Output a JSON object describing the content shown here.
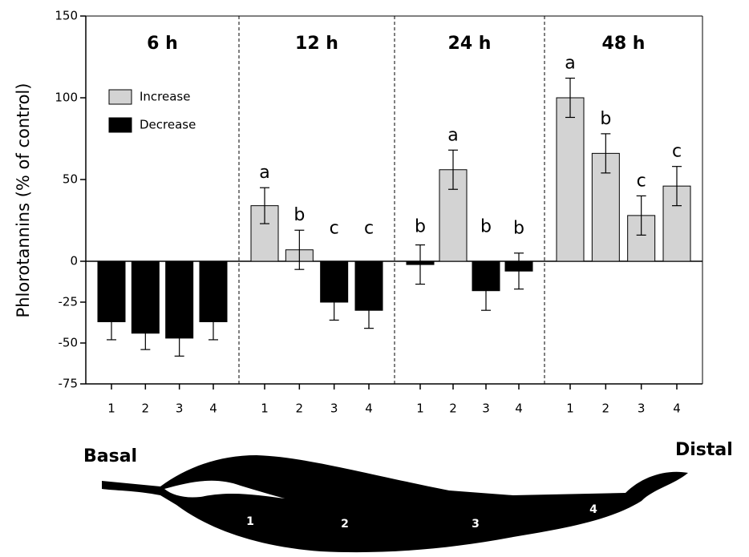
{
  "chart_data": {
    "type": "bar",
    "y_label": "Phlorotannins (% of control)",
    "ylim": [
      -75,
      150
    ],
    "yticks": [
      150,
      100,
      50,
      0,
      -25,
      -50,
      -75
    ],
    "legend": [
      {
        "name": "Increase",
        "color": "#d3d3d3"
      },
      {
        "name": "Decrease",
        "color": "#000000"
      }
    ],
    "panels": [
      {
        "title": "6 h",
        "categories": [
          "1",
          "2",
          "3",
          "4"
        ],
        "values": [
          -37,
          -44,
          -47,
          -37
        ],
        "errors": [
          11,
          10,
          11,
          11
        ]
      },
      {
        "title": "12 h",
        "categories": [
          "1",
          "2",
          "3",
          "4"
        ],
        "values": [
          34,
          7,
          -25,
          -30
        ],
        "errors": [
          11,
          12,
          11,
          11
        ],
        "letters": [
          "a",
          "b",
          "c",
          "c"
        ]
      },
      {
        "title": "24 h",
        "categories": [
          "1",
          "2",
          "3",
          "4"
        ],
        "values": [
          -2,
          56,
          -18,
          -6
        ],
        "errors": [
          12,
          12,
          12,
          11
        ],
        "letters": [
          "b",
          "a",
          "b",
          "b"
        ]
      },
      {
        "title": "48 h",
        "categories": [
          "1",
          "2",
          "3",
          "4"
        ],
        "values": [
          100,
          66,
          28,
          46
        ],
        "errors": [
          12,
          12,
          12,
          12
        ],
        "letters": [
          "a",
          "b",
          "c",
          "c"
        ]
      }
    ]
  },
  "diagram": {
    "left": "Basal",
    "right": "Distal",
    "regions": [
      "1",
      "2",
      "3",
      "4"
    ]
  }
}
